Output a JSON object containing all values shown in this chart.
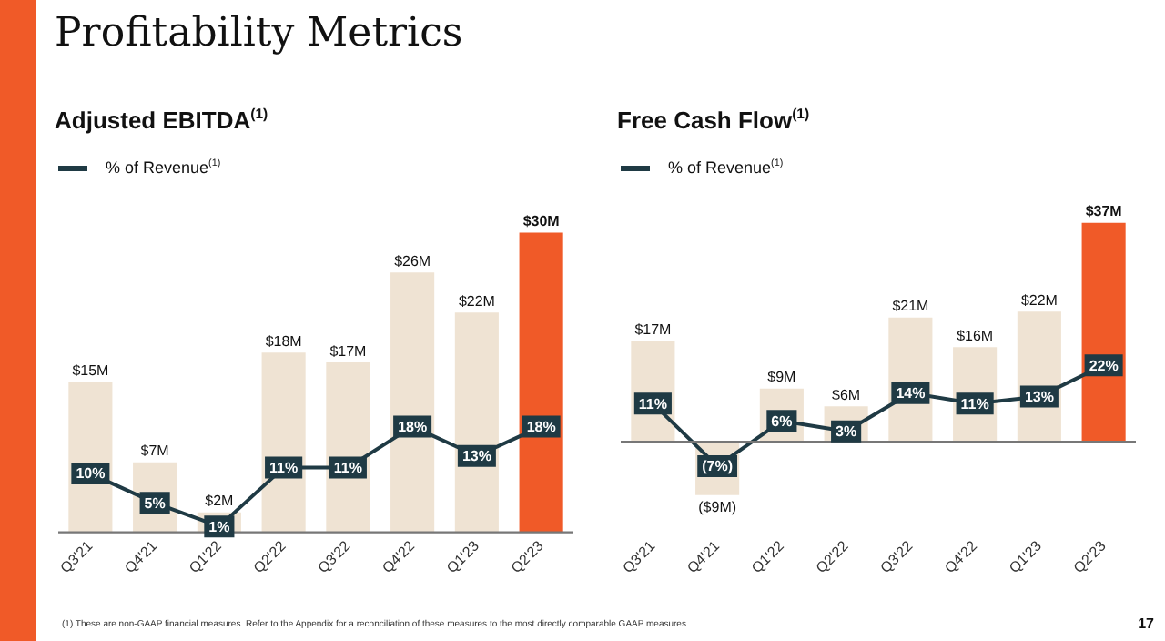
{
  "chart_data": [
    {
      "type": "bar",
      "title": "Adjusted EBITDA$^{(1)}$",
      "annotations": [
        "Profitability Metrics"
      ],
      "categories": [
        "Q3'21",
        "Q4'21",
        "Q1'22",
        "Q2'22",
        "Q3'22",
        "Q4'22",
        "Q1'23",
        "Q2'23"
      ],
      "series": [
        {
          "colors": [
            "#efe3d3",
            "#efe3d3",
            "#efe3d3",
            "#efe3d3",
            "#efe3d3",
            "#efe3d3",
            "#efe3d3",
            "#f05a28"
          ],
          "values": [
            15,
            7,
            2,
            18,
            17,
            26,
            22,
            30
          ],
          "value_labels": [
            "$15M",
            "$7M",
            "$2M",
            "$18M",
            "$17M",
            "$26M",
            "$22M",
            "$30M"
          ]
        },
        {
          "type": "line",
          "name": "% of Revenue$^{(1)}$",
          "color": "#1f3a44",
          "axis": "y2",
          "values": [
            10,
            5,
            1,
            11,
            11,
            18,
            13,
            18
          ],
          "value_labels": [
            "10%",
            "5%",
            "1%",
            "11%",
            "11%",
            "18%",
            "13%",
            "18%"
          ]
        }
      ],
      "legend": "top left",
      "tick_labels": "x",
      "grid": false,
      "marker": "square"
    },
    {
      "type": "bar",
      "title": "Free Cash Flow$^{(1)}$",
      "annotations": [
        "(1) These are non-GAAP financial measures.  Refer to the Appendix for a reconciliation of these measures to the most directly comparable GAAP measures.",
        "17"
      ],
      "categories": [
        "Q3'21",
        "Q4'21",
        "Q1'22",
        "Q2'22",
        "Q3'22",
        "Q4'22",
        "Q1'23",
        "Q2'23"
      ],
      "series": [
        {
          "colors": [
            "#efe3d3",
            "#efe3d3",
            "#efe3d3",
            "#efe3d3",
            "#efe3d3",
            "#efe3d3",
            "#efe3d3",
            "#f05a28"
          ],
          "values": [
            17,
            -9,
            9,
            6,
            21,
            16,
            22,
            37
          ],
          "value_labels": [
            "$17M",
            "($9M)",
            "$9M",
            "$6M",
            "$21M",
            "$16M",
            "$22M",
            "$37M"
          ]
        },
        {
          "type": "line",
          "name": "% of Revenue$^{(1)}$",
          "color": "#1f3a44",
          "axis": "y2",
          "values": [
            11,
            -7,
            6,
            3,
            14,
            11,
            13,
            22
          ],
          "value_labels": [
            "11%",
            "(7%)",
            "6%",
            "3%",
            "14%",
            "11%",
            "13%",
            "22%"
          ]
        }
      ],
      "legend": "top left",
      "tick_labels": "x",
      "grid": false,
      "marker": "square"
    }
  ]
}
